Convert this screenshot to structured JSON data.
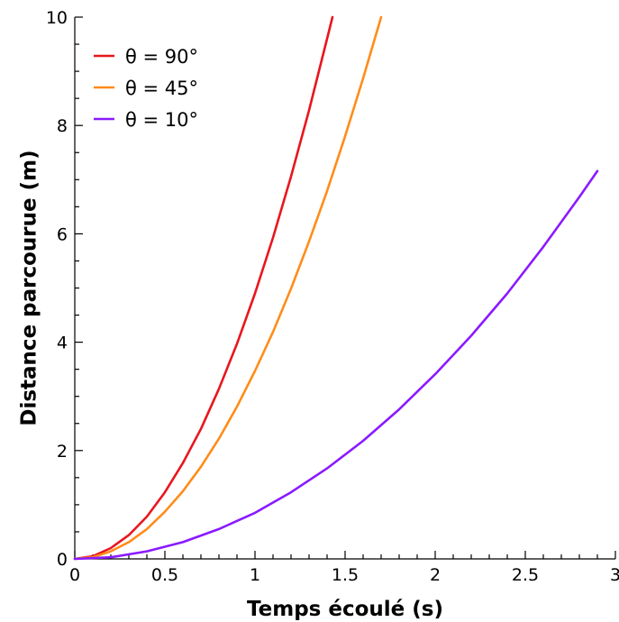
{
  "chart_data": {
    "type": "line",
    "title": "",
    "xlabel": "Temps écoulé (s)",
    "ylabel": "Distance parcourue (m)",
    "xlim": [
      0,
      3
    ],
    "ylim": [
      0,
      10
    ],
    "grid": false,
    "legend_position": "top-left",
    "x_ticks": [
      {
        "value": 0,
        "label": "0"
      },
      {
        "value": 0.5,
        "label": "0.5"
      },
      {
        "value": 1,
        "label": "1"
      },
      {
        "value": 1.5,
        "label": "1.5"
      },
      {
        "value": 2,
        "label": "2"
      },
      {
        "value": 2.5,
        "label": "2.5"
      },
      {
        "value": 3,
        "label": "3"
      }
    ],
    "y_ticks": [
      {
        "value": 0,
        "label": "0"
      },
      {
        "value": 2,
        "label": "2"
      },
      {
        "value": 4,
        "label": "4"
      },
      {
        "value": 6,
        "label": "6"
      },
      {
        "value": 8,
        "label": "8"
      },
      {
        "value": 10,
        "label": "10"
      }
    ],
    "series": [
      {
        "name": "θ = 90°",
        "color": "#e8161e",
        "x": [
          0,
          0.1,
          0.2,
          0.3,
          0.4,
          0.5,
          0.6,
          0.7,
          0.8,
          0.9,
          1.0,
          1.1,
          1.2,
          1.3,
          1.4,
          1.43
        ],
        "y": [
          0,
          0.05,
          0.2,
          0.44,
          0.78,
          1.23,
          1.77,
          2.4,
          3.14,
          3.97,
          4.9,
          5.93,
          7.06,
          8.28,
          9.6,
          10.0
        ]
      },
      {
        "name": "θ = 45°",
        "color": "#ff8c1a",
        "x": [
          0,
          0.1,
          0.2,
          0.3,
          0.4,
          0.5,
          0.6,
          0.7,
          0.8,
          0.9,
          1.0,
          1.1,
          1.2,
          1.3,
          1.4,
          1.5,
          1.6,
          1.7
        ],
        "y": [
          0,
          0.03,
          0.14,
          0.31,
          0.55,
          0.87,
          1.25,
          1.7,
          2.22,
          2.81,
          3.47,
          4.19,
          4.99,
          5.86,
          6.79,
          7.8,
          8.87,
          10.0
        ]
      },
      {
        "name": "θ = 10°",
        "color": "#8a1aff",
        "x": [
          0,
          0.2,
          0.4,
          0.6,
          0.8,
          1.0,
          1.2,
          1.4,
          1.6,
          1.8,
          2.0,
          2.2,
          2.4,
          2.6,
          2.8,
          2.9
        ],
        "y": [
          0,
          0.03,
          0.14,
          0.31,
          0.55,
          0.85,
          1.23,
          1.67,
          2.18,
          2.76,
          3.41,
          4.12,
          4.9,
          5.76,
          6.68,
          7.16
        ]
      }
    ]
  }
}
